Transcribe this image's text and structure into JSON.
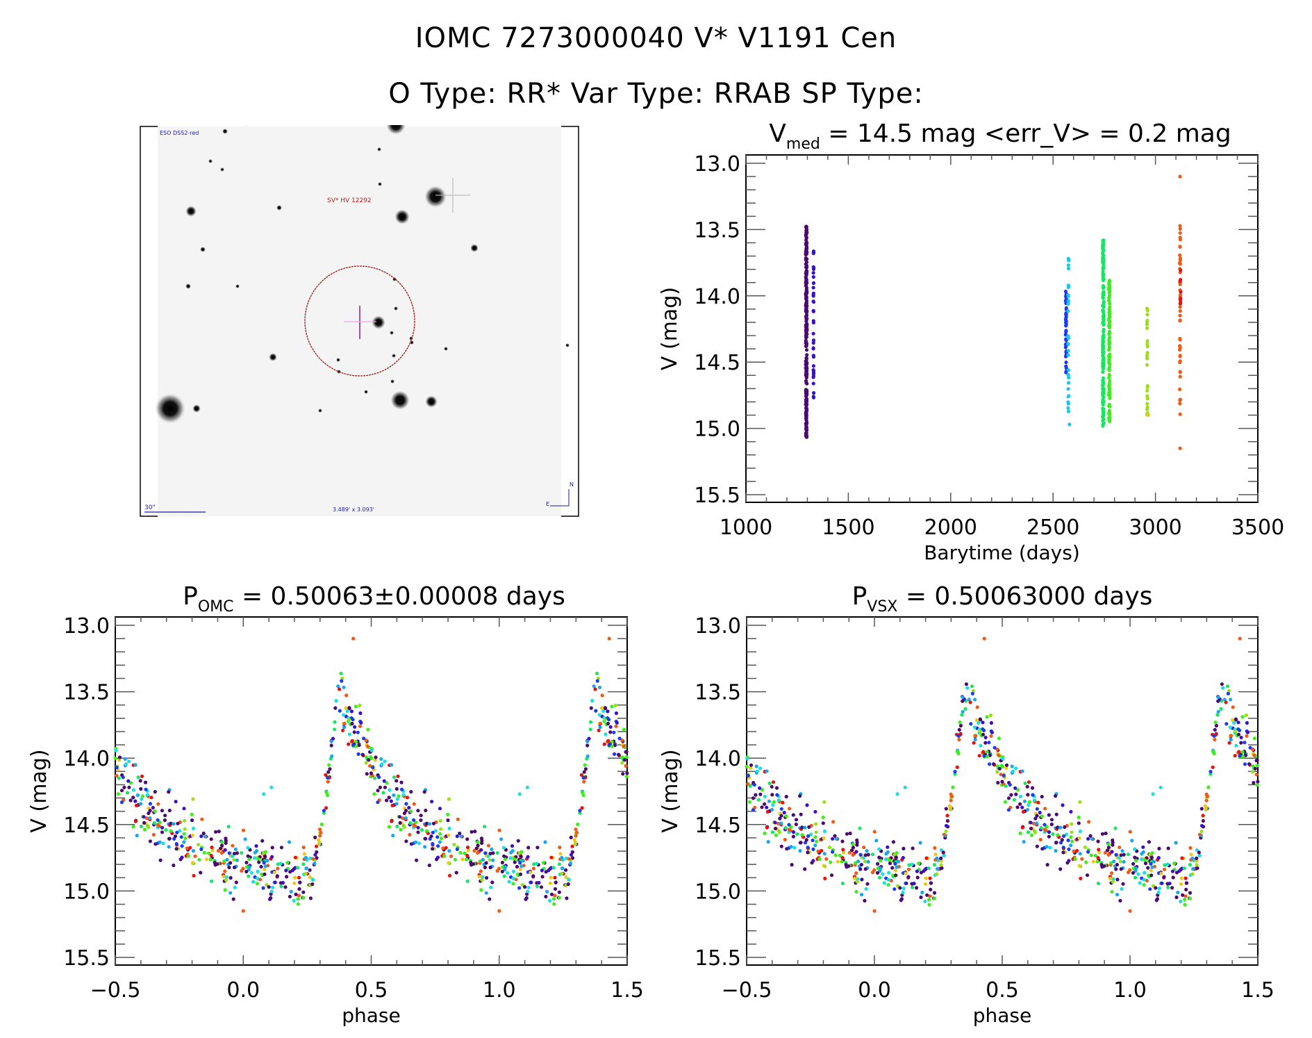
{
  "header": {
    "line1": "IOMC 7273000040    V* V1191 Cen",
    "line2": "O Type: RR*  Var Type: RRAB  SP Type:"
  },
  "sky_image": {
    "survey_label": "ESO DSS2-red",
    "target_label": "SV* HV 12292",
    "scale_label": "30\"",
    "fov_label": "3.489' x 3.093'",
    "north_label": "N",
    "east_label": "E",
    "colors": {
      "label": "#1a1aa6",
      "target": "#b31b1b",
      "circle": "#a01818",
      "cross": "#8a1a8a"
    }
  },
  "chart_data": [
    {
      "id": "lightcurve",
      "type": "scatter",
      "title_main": "V",
      "title_sub": "med",
      "title_rest": " = 14.5 mag <err_V> = 0.2 mag",
      "xlabel": "Barytime (days)",
      "ylabel": "V (mag)",
      "xlim": [
        1000,
        3500
      ],
      "ylim": [
        13.0,
        15.5
      ],
      "y_inverted": true,
      "xticks": [
        "1000",
        "1500",
        "2000",
        "2500",
        "3000",
        "3500"
      ],
      "yticks": [
        "13.0",
        "13.5",
        "14.0",
        "14.5",
        "15.0",
        "15.5"
      ],
      "groups": [
        {
          "name": "season-1",
          "x": 1295,
          "x_spread": 6,
          "ymin": 13.47,
          "ymax": 15.07,
          "n": 260,
          "color": "#4b0a6e"
        },
        {
          "name": "season-2",
          "x": 1330,
          "x_spread": 2,
          "ymin": 13.65,
          "ymax": 14.77,
          "n": 40,
          "color": "#3a0fd0"
        },
        {
          "name": "season-3",
          "x": 2563,
          "x_spread": 4,
          "ymin": 13.95,
          "ymax": 14.6,
          "n": 45,
          "color": "#1a3cf0"
        },
        {
          "name": "season-4",
          "x": 2575,
          "x_spread": 3,
          "ymin": 13.72,
          "ymax": 14.95,
          "n": 30,
          "color": "#19c6f0"
        },
        {
          "name": "season-5",
          "x": 2745,
          "x_spread": 6,
          "ymin": 13.58,
          "ymax": 15.02,
          "n": 150,
          "color": "#14e860"
        },
        {
          "name": "season-6",
          "x": 2775,
          "x_spread": 5,
          "ymin": 13.88,
          "ymax": 14.98,
          "n": 110,
          "color": "#3af018"
        },
        {
          "name": "season-7",
          "x": 2960,
          "x_spread": 3,
          "ymin": 14.07,
          "ymax": 14.9,
          "n": 25,
          "color": "#9ae014"
        },
        {
          "name": "season-8",
          "x": 3120,
          "x_spread": 3,
          "ymin": 13.47,
          "ymax": 14.95,
          "n": 45,
          "color": "#f05a14"
        },
        {
          "name": "season-9",
          "x": 3122,
          "x_spread": 2,
          "ymin": 13.8,
          "ymax": 14.1,
          "n": 8,
          "color": "#e81010"
        }
      ],
      "outliers": [
        {
          "x": 3120,
          "y": 13.1,
          "color": "#f05a14"
        },
        {
          "x": 3120,
          "y": 15.15,
          "color": "#f05a14"
        },
        {
          "x": 2575,
          "y": 13.72,
          "color": "#19c6f0"
        },
        {
          "x": 2580,
          "y": 14.97,
          "color": "#19c6f0"
        },
        {
          "x": 2745,
          "y": 13.6,
          "color": "#14e860"
        },
        {
          "x": 2965,
          "y": 14.9,
          "color": "#f0c814"
        }
      ]
    },
    {
      "id": "phase-omc",
      "type": "scatter",
      "title_main": "P",
      "title_sub": "OMC",
      "title_rest": " = 0.50063±0.00008 days",
      "xlabel": "phase",
      "ylabel": "V (mag)",
      "xlim": [
        -0.5,
        1.5
      ],
      "ylim": [
        13.0,
        15.5
      ],
      "y_inverted": true,
      "xticks": [
        "−0.5",
        "0.0",
        "0.5",
        "1.0",
        "1.5"
      ],
      "yticks": [
        "13.0",
        "13.5",
        "14.0",
        "14.5",
        "15.0",
        "15.5"
      ],
      "template": {
        "max_light_phase": 0.37,
        "max_mag": 13.5,
        "min_mag": 14.85,
        "rise_start_phase": 0.27,
        "scatter_mag": 0.12
      },
      "outliers": [
        {
          "x": 0.43,
          "y": 13.1,
          "color": "#f05a14"
        },
        {
          "x": 1.43,
          "y": 13.1,
          "color": "#f05a14"
        },
        {
          "x": 0.0,
          "y": 15.15,
          "color": "#f05a14"
        },
        {
          "x": 1.0,
          "y": 15.15,
          "color": "#f05a14"
        },
        {
          "x": 0.08,
          "y": 14.27,
          "color": "#19e0e0"
        },
        {
          "x": 0.11,
          "y": 14.22,
          "color": "#19e0e0"
        },
        {
          "x": 1.08,
          "y": 14.27,
          "color": "#19e0e0"
        },
        {
          "x": 1.11,
          "y": 14.22,
          "color": "#19e0e0"
        }
      ],
      "colors": [
        "#4b0a6e",
        "#4b0a6e",
        "#4b0a6e",
        "#3a0fd0",
        "#1a3cf0",
        "#19a6f0",
        "#19e0e0",
        "#14e860",
        "#3af018",
        "#3af018",
        "#9ae014",
        "#f0c814",
        "#f05a14",
        "#e81010"
      ]
    },
    {
      "id": "phase-vsx",
      "type": "scatter",
      "title_main": "P",
      "title_sub": "VSX",
      "title_rest": " = 0.50063000 days",
      "xlabel": "phase",
      "ylabel": "V (mag)",
      "xlim": [
        -0.5,
        1.5
      ],
      "ylim": [
        13.0,
        15.5
      ],
      "y_inverted": true,
      "xticks": [
        "−0.5",
        "0.0",
        "0.5",
        "1.0",
        "1.5"
      ],
      "yticks": [
        "13.0",
        "13.5",
        "14.0",
        "14.5",
        "15.0",
        "15.5"
      ],
      "template": {
        "max_light_phase": 0.35,
        "max_mag": 13.5,
        "min_mag": 14.85,
        "rise_start_phase": 0.25,
        "scatter_mag": 0.12
      },
      "outliers": [
        {
          "x": 0.43,
          "y": 13.1,
          "color": "#f05a14"
        },
        {
          "x": 1.43,
          "y": 13.1,
          "color": "#f05a14"
        },
        {
          "x": 0.0,
          "y": 15.15,
          "color": "#f05a14"
        },
        {
          "x": 1.0,
          "y": 15.15,
          "color": "#f05a14"
        },
        {
          "x": 0.09,
          "y": 14.27,
          "color": "#19e0e0"
        },
        {
          "x": 0.12,
          "y": 14.22,
          "color": "#19e0e0"
        },
        {
          "x": 1.09,
          "y": 14.27,
          "color": "#19e0e0"
        },
        {
          "x": 1.12,
          "y": 14.22,
          "color": "#19e0e0"
        }
      ],
      "colors": [
        "#4b0a6e",
        "#4b0a6e",
        "#4b0a6e",
        "#3a0fd0",
        "#1a3cf0",
        "#19a6f0",
        "#19e0e0",
        "#14e860",
        "#3af018",
        "#3af018",
        "#9ae014",
        "#f0c814",
        "#f05a14",
        "#e81010"
      ]
    }
  ]
}
